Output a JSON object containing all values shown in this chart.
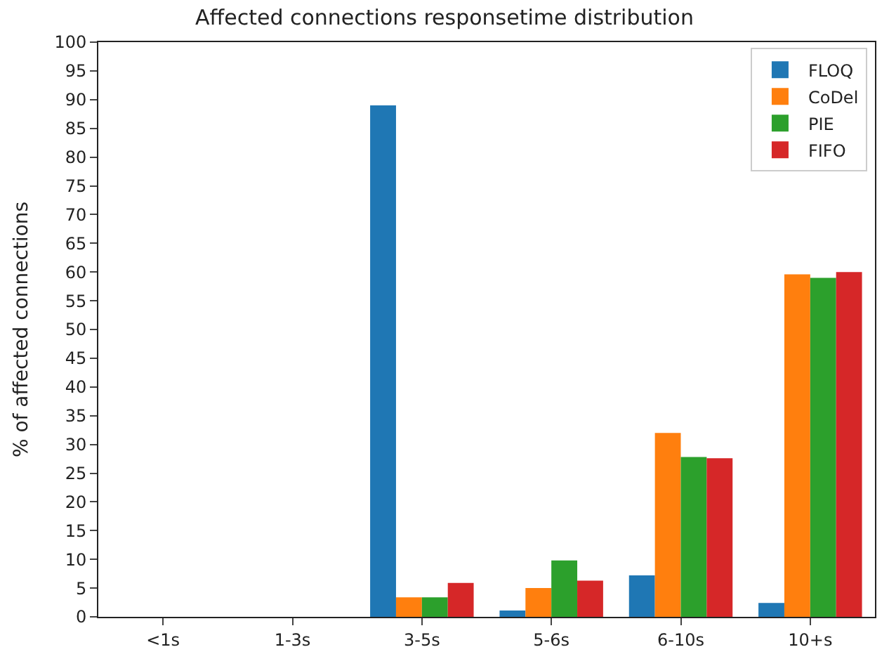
{
  "chart_data": {
    "type": "bar",
    "title": "Affected connections responsetime distribution",
    "ylabel": "% of affected connections",
    "categories": [
      "<1s",
      "1-3s",
      "3-5s",
      "5-6s",
      "6-10s",
      "10+s"
    ],
    "series": [
      {
        "name": "FLOQ",
        "color": "#1f77b4",
        "values": [
          0,
          0,
          89,
          1.1,
          7.2,
          2.4
        ]
      },
      {
        "name": "CoDel",
        "color": "#ff7f0e",
        "values": [
          0,
          0,
          3.4,
          5,
          32,
          59.6
        ]
      },
      {
        "name": "PIE",
        "color": "#2ca02c",
        "values": [
          0,
          0,
          3.4,
          9.8,
          27.8,
          59
        ]
      },
      {
        "name": "FIFO",
        "color": "#d62728",
        "values": [
          0,
          0,
          5.9,
          6.3,
          27.6,
          60
        ]
      }
    ],
    "ylim": [
      0,
      100
    ],
    "yticks": [
      0,
      5,
      10,
      15,
      20,
      25,
      30,
      35,
      40,
      45,
      50,
      55,
      60,
      65,
      70,
      75,
      80,
      85,
      90,
      95,
      100
    ],
    "legend": "top right"
  }
}
